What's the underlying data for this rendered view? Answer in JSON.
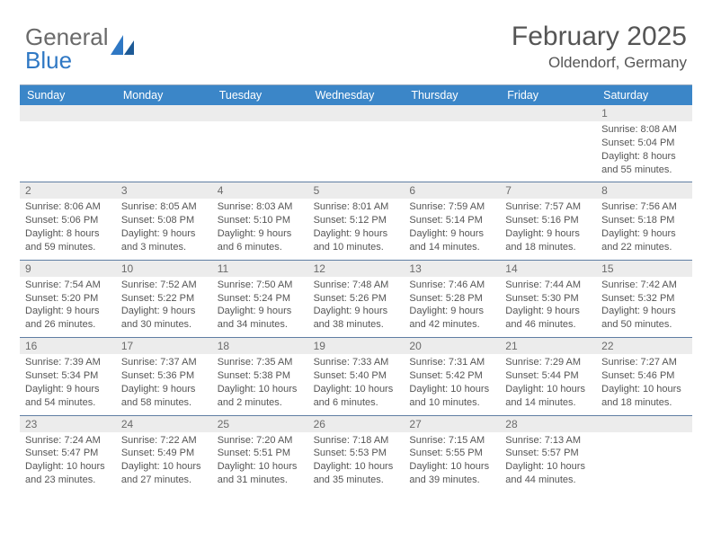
{
  "logo": {
    "word1": "General",
    "word2": "Blue"
  },
  "title": {
    "month": "February 2025",
    "location": "Oldendorf, Germany"
  },
  "colors": {
    "header_bar": "#3b86c8",
    "header_text": "#ffffff",
    "num_bg": "#ececec",
    "row_border": "#5f7ea3",
    "body_text": "#555555",
    "logo_gray": "#6a6a6a",
    "logo_blue": "#2f78c4"
  },
  "day_names": [
    "Sunday",
    "Monday",
    "Tuesday",
    "Wednesday",
    "Thursday",
    "Friday",
    "Saturday"
  ],
  "weeks": [
    [
      {
        "n": "",
        "lines": []
      },
      {
        "n": "",
        "lines": []
      },
      {
        "n": "",
        "lines": []
      },
      {
        "n": "",
        "lines": []
      },
      {
        "n": "",
        "lines": []
      },
      {
        "n": "",
        "lines": []
      },
      {
        "n": "1",
        "lines": [
          "Sunrise: 8:08 AM",
          "Sunset: 5:04 PM",
          "Daylight: 8 hours and 55 minutes."
        ]
      }
    ],
    [
      {
        "n": "2",
        "lines": [
          "Sunrise: 8:06 AM",
          "Sunset: 5:06 PM",
          "Daylight: 8 hours and 59 minutes."
        ]
      },
      {
        "n": "3",
        "lines": [
          "Sunrise: 8:05 AM",
          "Sunset: 5:08 PM",
          "Daylight: 9 hours and 3 minutes."
        ]
      },
      {
        "n": "4",
        "lines": [
          "Sunrise: 8:03 AM",
          "Sunset: 5:10 PM",
          "Daylight: 9 hours and 6 minutes."
        ]
      },
      {
        "n": "5",
        "lines": [
          "Sunrise: 8:01 AM",
          "Sunset: 5:12 PM",
          "Daylight: 9 hours and 10 minutes."
        ]
      },
      {
        "n": "6",
        "lines": [
          "Sunrise: 7:59 AM",
          "Sunset: 5:14 PM",
          "Daylight: 9 hours and 14 minutes."
        ]
      },
      {
        "n": "7",
        "lines": [
          "Sunrise: 7:57 AM",
          "Sunset: 5:16 PM",
          "Daylight: 9 hours and 18 minutes."
        ]
      },
      {
        "n": "8",
        "lines": [
          "Sunrise: 7:56 AM",
          "Sunset: 5:18 PM",
          "Daylight: 9 hours and 22 minutes."
        ]
      }
    ],
    [
      {
        "n": "9",
        "lines": [
          "Sunrise: 7:54 AM",
          "Sunset: 5:20 PM",
          "Daylight: 9 hours and 26 minutes."
        ]
      },
      {
        "n": "10",
        "lines": [
          "Sunrise: 7:52 AM",
          "Sunset: 5:22 PM",
          "Daylight: 9 hours and 30 minutes."
        ]
      },
      {
        "n": "11",
        "lines": [
          "Sunrise: 7:50 AM",
          "Sunset: 5:24 PM",
          "Daylight: 9 hours and 34 minutes."
        ]
      },
      {
        "n": "12",
        "lines": [
          "Sunrise: 7:48 AM",
          "Sunset: 5:26 PM",
          "Daylight: 9 hours and 38 minutes."
        ]
      },
      {
        "n": "13",
        "lines": [
          "Sunrise: 7:46 AM",
          "Sunset: 5:28 PM",
          "Daylight: 9 hours and 42 minutes."
        ]
      },
      {
        "n": "14",
        "lines": [
          "Sunrise: 7:44 AM",
          "Sunset: 5:30 PM",
          "Daylight: 9 hours and 46 minutes."
        ]
      },
      {
        "n": "15",
        "lines": [
          "Sunrise: 7:42 AM",
          "Sunset: 5:32 PM",
          "Daylight: 9 hours and 50 minutes."
        ]
      }
    ],
    [
      {
        "n": "16",
        "lines": [
          "Sunrise: 7:39 AM",
          "Sunset: 5:34 PM",
          "Daylight: 9 hours and 54 minutes."
        ]
      },
      {
        "n": "17",
        "lines": [
          "Sunrise: 7:37 AM",
          "Sunset: 5:36 PM",
          "Daylight: 9 hours and 58 minutes."
        ]
      },
      {
        "n": "18",
        "lines": [
          "Sunrise: 7:35 AM",
          "Sunset: 5:38 PM",
          "Daylight: 10 hours and 2 minutes."
        ]
      },
      {
        "n": "19",
        "lines": [
          "Sunrise: 7:33 AM",
          "Sunset: 5:40 PM",
          "Daylight: 10 hours and 6 minutes."
        ]
      },
      {
        "n": "20",
        "lines": [
          "Sunrise: 7:31 AM",
          "Sunset: 5:42 PM",
          "Daylight: 10 hours and 10 minutes."
        ]
      },
      {
        "n": "21",
        "lines": [
          "Sunrise: 7:29 AM",
          "Sunset: 5:44 PM",
          "Daylight: 10 hours and 14 minutes."
        ]
      },
      {
        "n": "22",
        "lines": [
          "Sunrise: 7:27 AM",
          "Sunset: 5:46 PM",
          "Daylight: 10 hours and 18 minutes."
        ]
      }
    ],
    [
      {
        "n": "23",
        "lines": [
          "Sunrise: 7:24 AM",
          "Sunset: 5:47 PM",
          "Daylight: 10 hours and 23 minutes."
        ]
      },
      {
        "n": "24",
        "lines": [
          "Sunrise: 7:22 AM",
          "Sunset: 5:49 PM",
          "Daylight: 10 hours and 27 minutes."
        ]
      },
      {
        "n": "25",
        "lines": [
          "Sunrise: 7:20 AM",
          "Sunset: 5:51 PM",
          "Daylight: 10 hours and 31 minutes."
        ]
      },
      {
        "n": "26",
        "lines": [
          "Sunrise: 7:18 AM",
          "Sunset: 5:53 PM",
          "Daylight: 10 hours and 35 minutes."
        ]
      },
      {
        "n": "27",
        "lines": [
          "Sunrise: 7:15 AM",
          "Sunset: 5:55 PM",
          "Daylight: 10 hours and 39 minutes."
        ]
      },
      {
        "n": "28",
        "lines": [
          "Sunrise: 7:13 AM",
          "Sunset: 5:57 PM",
          "Daylight: 10 hours and 44 minutes."
        ]
      },
      {
        "n": "",
        "lines": []
      }
    ]
  ]
}
